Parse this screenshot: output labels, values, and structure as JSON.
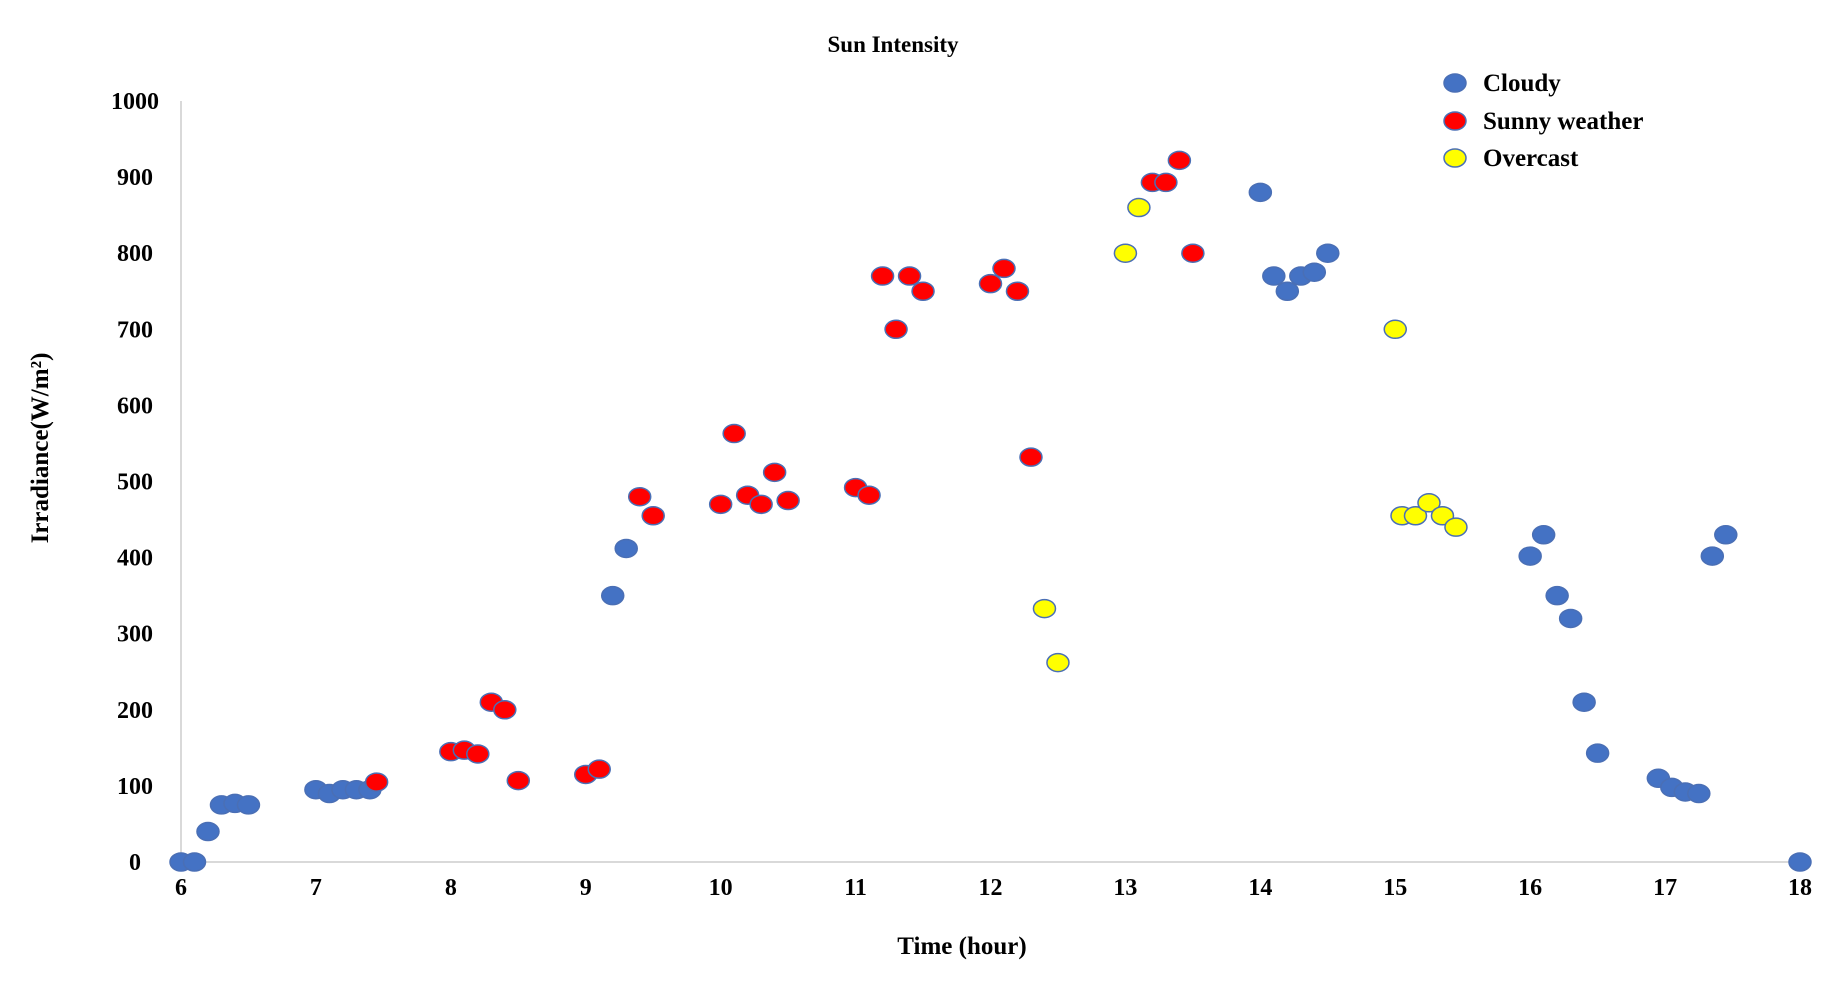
{
  "chart_data": {
    "type": "scatter",
    "title": "Sun Intensity",
    "xlabel": "Time (hour)",
    "ylabel": "Irradiance(W/m²)",
    "xlim": [
      6,
      18
    ],
    "ylim": [
      0,
      1000
    ],
    "x_ticks": [
      6,
      7,
      8,
      9,
      10,
      11,
      12,
      13,
      14,
      15,
      16,
      17,
      18
    ],
    "y_ticks": [
      0,
      100,
      200,
      300,
      400,
      500,
      600,
      700,
      800,
      900,
      1000
    ],
    "grid": false,
    "legend_position": "top-right",
    "series": [
      {
        "name": "Cloudy",
        "color": "#4472c4",
        "points": [
          [
            6.0,
            0
          ],
          [
            6.1,
            0
          ],
          [
            6.2,
            40
          ],
          [
            6.3,
            75
          ],
          [
            6.4,
            77
          ],
          [
            6.5,
            75
          ],
          [
            7.0,
            95
          ],
          [
            7.1,
            90
          ],
          [
            7.2,
            95
          ],
          [
            7.3,
            95
          ],
          [
            7.4,
            95
          ],
          [
            9.2,
            350
          ],
          [
            9.3,
            412
          ],
          [
            14.0,
            880
          ],
          [
            14.1,
            770
          ],
          [
            14.2,
            750
          ],
          [
            14.3,
            770
          ],
          [
            14.4,
            775
          ],
          [
            14.5,
            800
          ],
          [
            16.0,
            402
          ],
          [
            16.1,
            430
          ],
          [
            16.2,
            350
          ],
          [
            16.3,
            320
          ],
          [
            16.4,
            210
          ],
          [
            16.5,
            143
          ],
          [
            16.95,
            110
          ],
          [
            17.05,
            98
          ],
          [
            17.15,
            92
          ],
          [
            17.25,
            90
          ],
          [
            17.35,
            402
          ],
          [
            17.45,
            430
          ],
          [
            18.0,
            0
          ]
        ]
      },
      {
        "name": "Sunny weather",
        "color": "#ff0000",
        "points": [
          [
            7.45,
            105
          ],
          [
            8.0,
            145
          ],
          [
            8.1,
            147
          ],
          [
            8.2,
            142
          ],
          [
            8.3,
            210
          ],
          [
            8.4,
            200
          ],
          [
            8.5,
            107
          ],
          [
            9.0,
            115
          ],
          [
            9.1,
            122
          ],
          [
            9.4,
            480
          ],
          [
            9.5,
            455
          ],
          [
            10.0,
            470
          ],
          [
            10.1,
            563
          ],
          [
            10.2,
            482
          ],
          [
            10.3,
            470
          ],
          [
            10.4,
            512
          ],
          [
            10.5,
            475
          ],
          [
            11.0,
            492
          ],
          [
            11.1,
            482
          ],
          [
            11.2,
            770
          ],
          [
            11.3,
            700
          ],
          [
            11.4,
            770
          ],
          [
            11.5,
            750
          ],
          [
            12.0,
            760
          ],
          [
            12.1,
            780
          ],
          [
            12.2,
            750
          ],
          [
            12.3,
            532
          ],
          [
            13.2,
            893
          ],
          [
            13.3,
            893
          ],
          [
            13.4,
            922
          ],
          [
            13.5,
            800
          ]
        ]
      },
      {
        "name": "Overcast",
        "color": "#ffff00",
        "points": [
          [
            12.4,
            333
          ],
          [
            12.5,
            262
          ],
          [
            13.0,
            800
          ],
          [
            13.1,
            860
          ],
          [
            15.0,
            700
          ],
          [
            15.05,
            455
          ],
          [
            15.15,
            455
          ],
          [
            15.25,
            472
          ],
          [
            15.35,
            455
          ],
          [
            15.45,
            440
          ]
        ]
      }
    ]
  }
}
